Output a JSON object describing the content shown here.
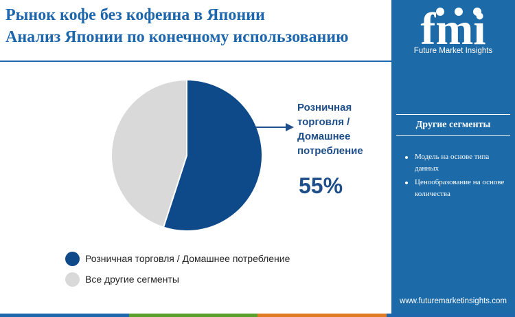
{
  "header": {
    "title_line1": "Рынок кофе без кофеина в Японии",
    "title_line2": "Анализ Японии по конечному использованию"
  },
  "sidebar": {
    "logo_text": "fmi",
    "logo_caption": "Future Market Insights",
    "segments_title": "Другие сегменты",
    "segments": [
      "Модель на основе типа данных",
      "Ценообразование на основе количества"
    ],
    "website": "www.futuremarketinsights.com"
  },
  "callout": {
    "label": "Розничная торговля / Домашнее потребление",
    "percent": "55%"
  },
  "colors": {
    "brand_blue": "#1c6aa8",
    "title_blue": "#1e67ad",
    "retail": "#0e4a8a",
    "other": "#d9d9d9",
    "stripe": [
      "#1e67ad",
      "#5aa02c",
      "#e07b24",
      "#1e67ad"
    ]
  },
  "chart_data": {
    "type": "pie",
    "title": "",
    "series": [
      {
        "name": "Розничная торговля / Домашнее потребление",
        "value": 55
      },
      {
        "name": "Все другие сегменты",
        "value": 45
      }
    ],
    "legend_position": "bottom-left"
  }
}
